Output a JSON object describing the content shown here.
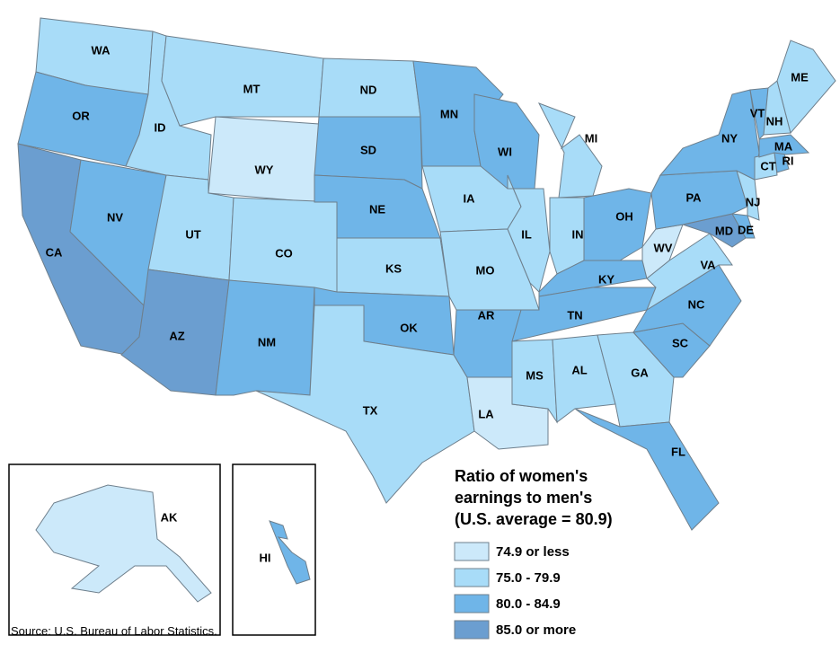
{
  "map": {
    "states": [
      {
        "label": "WA",
        "color": "#a8dcf8"
      },
      {
        "label": "OR",
        "color": "#6fb5e8"
      },
      {
        "label": "CA",
        "color": "#6b9ed0"
      },
      {
        "label": "NV",
        "color": "#6fb5e8"
      },
      {
        "label": "ID",
        "color": "#a8dcf8"
      },
      {
        "label": "MT",
        "color": "#a8dcf8"
      },
      {
        "label": "WY",
        "color": "#cce9fa"
      },
      {
        "label": "UT",
        "color": "#a8dcf8"
      },
      {
        "label": "CO",
        "color": "#a8dcf8"
      },
      {
        "label": "AZ",
        "color": "#6b9ed0"
      },
      {
        "label": "NM",
        "color": "#6fb5e8"
      },
      {
        "label": "ND",
        "color": "#a8dcf8"
      },
      {
        "label": "SD",
        "color": "#6fb5e8"
      },
      {
        "label": "NE",
        "color": "#6fb5e8"
      },
      {
        "label": "KS",
        "color": "#a8dcf8"
      },
      {
        "label": "OK",
        "color": "#6fb5e8"
      },
      {
        "label": "TX",
        "color": "#a8dcf8"
      },
      {
        "label": "MN",
        "color": "#6fb5e8"
      },
      {
        "label": "IA",
        "color": "#a8dcf8"
      },
      {
        "label": "MO",
        "color": "#a8dcf8"
      },
      {
        "label": "AR",
        "color": "#6fb5e8"
      },
      {
        "label": "LA",
        "color": "#cce9fa"
      },
      {
        "label": "WI",
        "color": "#6fb5e8"
      },
      {
        "label": "IL",
        "color": "#a8dcf8"
      },
      {
        "label": "MI",
        "color": "#a8dcf8"
      },
      {
        "label": "IN",
        "color": "#a8dcf8"
      },
      {
        "label": "OH",
        "color": "#6fb5e8"
      },
      {
        "label": "KY",
        "color": "#6fb5e8"
      },
      {
        "label": "TN",
        "color": "#6fb5e8"
      },
      {
        "label": "MS",
        "color": "#a8dcf8"
      },
      {
        "label": "AL",
        "color": "#a8dcf8"
      },
      {
        "label": "GA",
        "color": "#a8dcf8"
      },
      {
        "label": "FL",
        "color": "#6fb5e8"
      },
      {
        "label": "SC",
        "color": "#6fb5e8"
      },
      {
        "label": "NC",
        "color": "#6fb5e8"
      },
      {
        "label": "VA",
        "color": "#a8dcf8"
      },
      {
        "label": "WV",
        "color": "#cce9fa"
      },
      {
        "label": "MD",
        "color": "#6b9ed0"
      },
      {
        "label": "DE",
        "color": "#6fb5e8"
      },
      {
        "label": "PA",
        "color": "#6fb5e8"
      },
      {
        "label": "NJ",
        "color": "#a8dcf8"
      },
      {
        "label": "NY",
        "color": "#6fb5e8"
      },
      {
        "label": "CT",
        "color": "#a8dcf8"
      },
      {
        "label": "RI",
        "color": "#6fb5e8"
      },
      {
        "label": "MA",
        "color": "#6fb5e8"
      },
      {
        "label": "VT",
        "color": "#6fb5e8"
      },
      {
        "label": "NH",
        "color": "#a8dcf8"
      },
      {
        "label": "ME",
        "color": "#a8dcf8"
      },
      {
        "label": "AK",
        "color": "#cce9fa"
      },
      {
        "label": "HI",
        "color": "#6fb5e8"
      }
    ],
    "legend": {
      "title": [
        "Ratio of women's",
        "earnings to men's",
        "(U.S. average = 80.9)"
      ],
      "items": [
        {
          "label": "74.9 or less",
          "color": "#cce9fa"
        },
        {
          "label": "75.0 - 79.9",
          "color": "#a8dcf8"
        },
        {
          "label": "80.0 - 84.9",
          "color": "#6fb5e8"
        },
        {
          "label": "85.0 or more",
          "color": "#6b9ed0"
        }
      ]
    },
    "source": "Source: U.S. Bureau of Labor Statistics."
  }
}
